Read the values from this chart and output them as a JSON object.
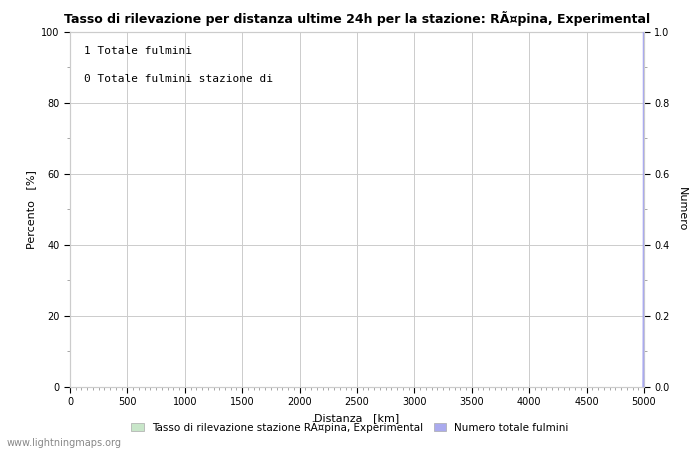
{
  "title": "Tasso di rilevazione per distanza ultime 24h per la stazione: RÃ¤pina, Experimental",
  "xlabel": "Distanza   [km]",
  "ylabel_left": "Percento   [%]",
  "ylabel_right": "Numero",
  "xlim": [
    0,
    5000
  ],
  "ylim_left": [
    0,
    100
  ],
  "ylim_right": [
    0,
    1.0
  ],
  "yticks_left": [
    0,
    20,
    40,
    60,
    80,
    100
  ],
  "yticks_right": [
    0.0,
    0.2,
    0.4,
    0.6,
    0.8,
    1.0
  ],
  "xticks": [
    0,
    500,
    1000,
    1500,
    2000,
    2500,
    3000,
    3500,
    4000,
    4500,
    5000
  ],
  "annotation_line1": "1 Totale fulmini",
  "annotation_line2": "0 Totale fulmini stazione di",
  "legend_label_green": "Tasso di rilevazione stazione RÃ¤pina, Experimental",
  "legend_label_blue": "Numero totale fulmini",
  "bar_color": "#c8e6c9",
  "line_color": "#aaaaee",
  "grid_color": "#cccccc",
  "background_color": "#ffffff",
  "watermark": "www.lightningmaps.org",
  "spike_x": [
    4990,
    4991,
    4992,
    4993,
    4994,
    4995,
    4996,
    4997,
    4998,
    4999,
    5000
  ],
  "spike_y": [
    0.0,
    0.05,
    0.15,
    0.35,
    0.65,
    1.0,
    0.65,
    0.35,
    0.15,
    0.05,
    0.0
  ]
}
